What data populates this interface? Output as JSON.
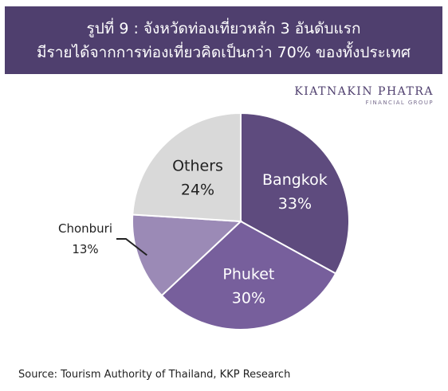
{
  "header": {
    "title_line1": "รูปที่ 9 : จังหวัดท่องเที่ยวหลัก 3 อันดับแรก",
    "title_line2": "มีรายได้จากการท่องเที่ยวคิดเป็นกว่า 70% ของทั้งประเทศ"
  },
  "brand": {
    "name": "KIATNAKIN PHATRA",
    "sub": "FINANCIAL GROUP"
  },
  "colors": {
    "banner": "#4f3f6e",
    "bangkok": "#5e4b7e",
    "phuket": "#775f9c",
    "chonburi": "#9b8ab6",
    "others": "#d9d9d9"
  },
  "chart_data": {
    "type": "pie",
    "slices": [
      {
        "label": "Bangkok",
        "value": 33,
        "value_label": "33%"
      },
      {
        "label": "Phuket",
        "value": 30,
        "value_label": "30%"
      },
      {
        "label": "Chonburi",
        "value": 13,
        "value_label": "13%"
      },
      {
        "label": "Others",
        "value": 24,
        "value_label": "24%"
      }
    ]
  },
  "source": "Source: Tourism Authority of Thailand, KKP Research"
}
